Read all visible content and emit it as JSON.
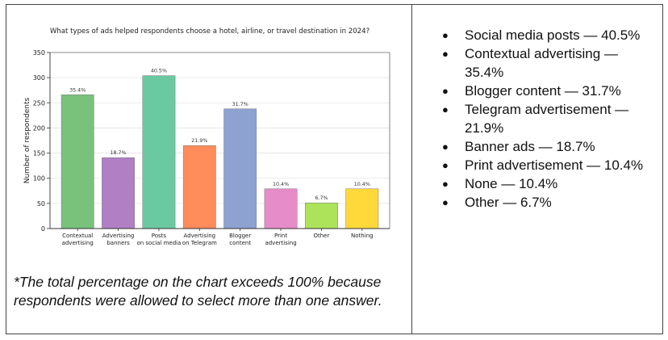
{
  "chart_data": {
    "type": "bar",
    "title": "What types of ads helped respondents choose a hotel, airline, or travel destination in 2024?",
    "ylabel": "Number of respondents",
    "xlabel": "",
    "ylim": [
      0,
      350
    ],
    "yticks": [
      0,
      50,
      100,
      150,
      200,
      250,
      300,
      350
    ],
    "grid": true,
    "categories": [
      [
        "Contextual",
        "advertising"
      ],
      [
        "Advertising",
        "banners"
      ],
      [
        "Posts",
        "on social media"
      ],
      [
        "Advertising",
        "on Telegram"
      ],
      [
        "Blogger",
        "content"
      ],
      [
        "Print",
        "advertising"
      ],
      [
        "Other"
      ],
      [
        "Nothing"
      ]
    ],
    "values": [
      266,
      141,
      304,
      165,
      238,
      79,
      51,
      79
    ],
    "data_labels": [
      "35.4%",
      "18.7%",
      "40.5%",
      "21.9%",
      "31.7%",
      "10.4%",
      "6.7%",
      "10.4%"
    ],
    "colors": [
      "#79c27c",
      "#b07fc4",
      "#6bc9a1",
      "#ff8c5a",
      "#8da2d1",
      "#e68cc9",
      "#ade35a",
      "#ffd93a"
    ]
  },
  "footnote": "*The total percentage on the chart exceeds 100% because respondents were allowed to select more than one answer.",
  "bullets": [
    "Social media posts — 40.5%",
    "Contextual advertising — 35.4%",
    "Blogger content — 31.7%",
    "Telegram advertisement — 21.9%",
    "Banner ads — 18.7%",
    "Print advertisement — 10.4%",
    "None — 10.4%",
    "Other — 6.7%"
  ]
}
